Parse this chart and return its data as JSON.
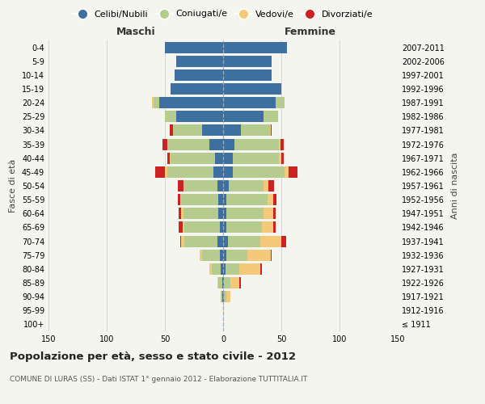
{
  "age_groups": [
    "100+",
    "95-99",
    "90-94",
    "85-89",
    "80-84",
    "75-79",
    "70-74",
    "65-69",
    "60-64",
    "55-59",
    "50-54",
    "45-49",
    "40-44",
    "35-39",
    "30-34",
    "25-29",
    "20-24",
    "15-19",
    "10-14",
    "5-9",
    "0-4"
  ],
  "birth_years": [
    "≤ 1911",
    "1912-1916",
    "1917-1921",
    "1922-1926",
    "1927-1931",
    "1932-1936",
    "1937-1941",
    "1942-1946",
    "1947-1951",
    "1952-1956",
    "1957-1961",
    "1962-1966",
    "1967-1971",
    "1972-1976",
    "1977-1981",
    "1982-1986",
    "1987-1991",
    "1992-1996",
    "1997-2001",
    "2002-2006",
    "2007-2011"
  ],
  "maschi_celibi": [
    0,
    0,
    1,
    1,
    2,
    3,
    5,
    3,
    4,
    4,
    5,
    8,
    7,
    12,
    18,
    40,
    55,
    45,
    42,
    40,
    50
  ],
  "maschi_coniugati": [
    0,
    0,
    1,
    3,
    8,
    15,
    28,
    30,
    30,
    32,
    28,
    40,
    38,
    35,
    25,
    10,
    5,
    0,
    0,
    0,
    0
  ],
  "maschi_vedovi": [
    0,
    0,
    0,
    1,
    2,
    2,
    3,
    2,
    2,
    1,
    1,
    2,
    1,
    1,
    0,
    0,
    1,
    0,
    0,
    0,
    0
  ],
  "maschi_divorziati": [
    0,
    0,
    0,
    0,
    0,
    0,
    1,
    3,
    2,
    2,
    5,
    8,
    2,
    4,
    3,
    0,
    0,
    0,
    0,
    0,
    0
  ],
  "femmine_celibi": [
    0,
    0,
    1,
    1,
    2,
    3,
    4,
    3,
    3,
    3,
    5,
    8,
    8,
    10,
    15,
    35,
    45,
    50,
    42,
    42,
    55
  ],
  "femmine_coniugati": [
    0,
    0,
    2,
    5,
    12,
    18,
    28,
    30,
    32,
    35,
    30,
    45,
    40,
    38,
    25,
    12,
    8,
    0,
    0,
    0,
    0
  ],
  "femmine_vedovi": [
    0,
    1,
    3,
    8,
    18,
    20,
    18,
    10,
    8,
    5,
    4,
    3,
    2,
    1,
    1,
    0,
    0,
    0,
    0,
    0,
    0
  ],
  "femmine_divorziati": [
    0,
    0,
    0,
    1,
    1,
    1,
    4,
    2,
    2,
    3,
    5,
    8,
    2,
    3,
    1,
    0,
    0,
    0,
    0,
    0,
    0
  ],
  "color_celibi": "#3d6fa0",
  "color_coniugati": "#b5cc8e",
  "color_vedovi": "#f5c97a",
  "color_divorziati": "#cc2222",
  "background_color": "#f5f5f0",
  "grid_color": "#cccccc",
  "title": "Popolazione per età, sesso e stato civile - 2012",
  "subtitle": "COMUNE DI LURAS (SS) - Dati ISTAT 1° gennaio 2012 - Elaborazione TUTTITALIA.IT",
  "ylabel_left": "Fasce di età",
  "ylabel_right": "Anni di nascita",
  "xlabel_left": "Maschi",
  "xlabel_right": "Femmine",
  "xlim": 150,
  "legend_labels": [
    "Celibi/Nubili",
    "Coniugati/e",
    "Vedovi/e",
    "Divorziati/e"
  ]
}
